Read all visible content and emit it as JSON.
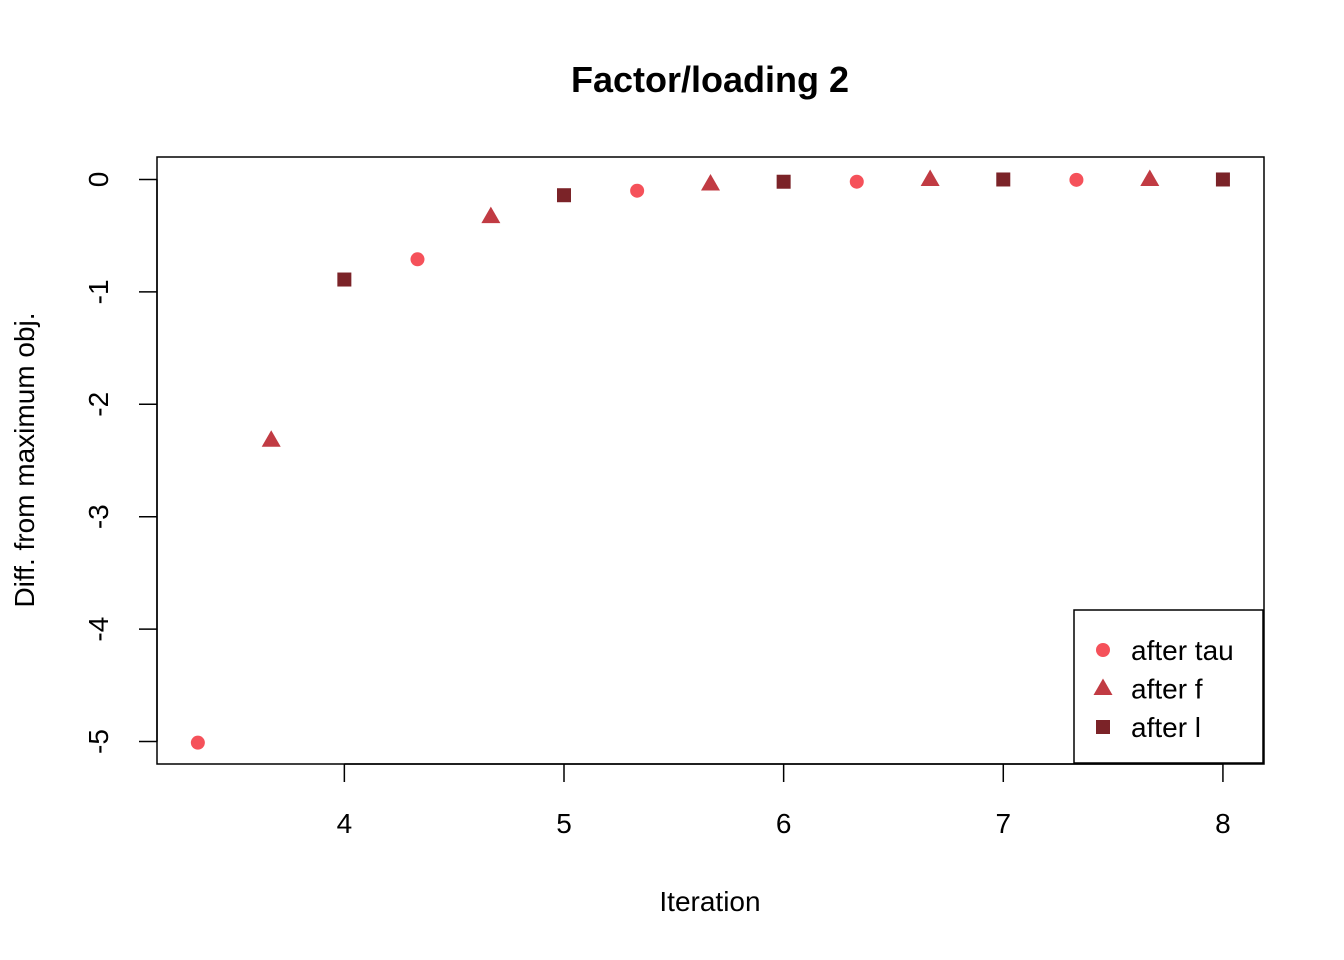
{
  "chart_data": {
    "type": "scatter",
    "title": "Factor/loading 2",
    "xlabel": "Iteration",
    "ylabel": "Diff. from maximum obj.",
    "xlim": [
      3.147,
      8.187
    ],
    "ylim": [
      -5.2,
      0.2
    ],
    "xticks": [
      4,
      5,
      6,
      7,
      8
    ],
    "yticks": [
      0,
      -1,
      -2,
      -3,
      -4,
      -5
    ],
    "grid": false,
    "legend_position": "bottom-right",
    "series": [
      {
        "name": "after tau",
        "marker": "circle",
        "color": "#F5515A",
        "x": [
          3.333,
          4.333,
          5.333,
          6.333,
          7.333
        ],
        "y": [
          -5.01,
          -0.71,
          -0.1,
          -0.02,
          -0.003
        ]
      },
      {
        "name": "after f",
        "marker": "triangle",
        "color": "#C13B43",
        "x": [
          3.667,
          4.667,
          5.667,
          6.667,
          7.667
        ],
        "y": [
          -2.32,
          -0.33,
          -0.04,
          0.0,
          0.0
        ]
      },
      {
        "name": "after l",
        "marker": "square",
        "color": "#7B2328",
        "x": [
          4,
          5,
          6,
          7,
          8
        ],
        "y": [
          -0.89,
          -0.14,
          -0.02,
          0.0,
          0.0
        ]
      }
    ]
  }
}
